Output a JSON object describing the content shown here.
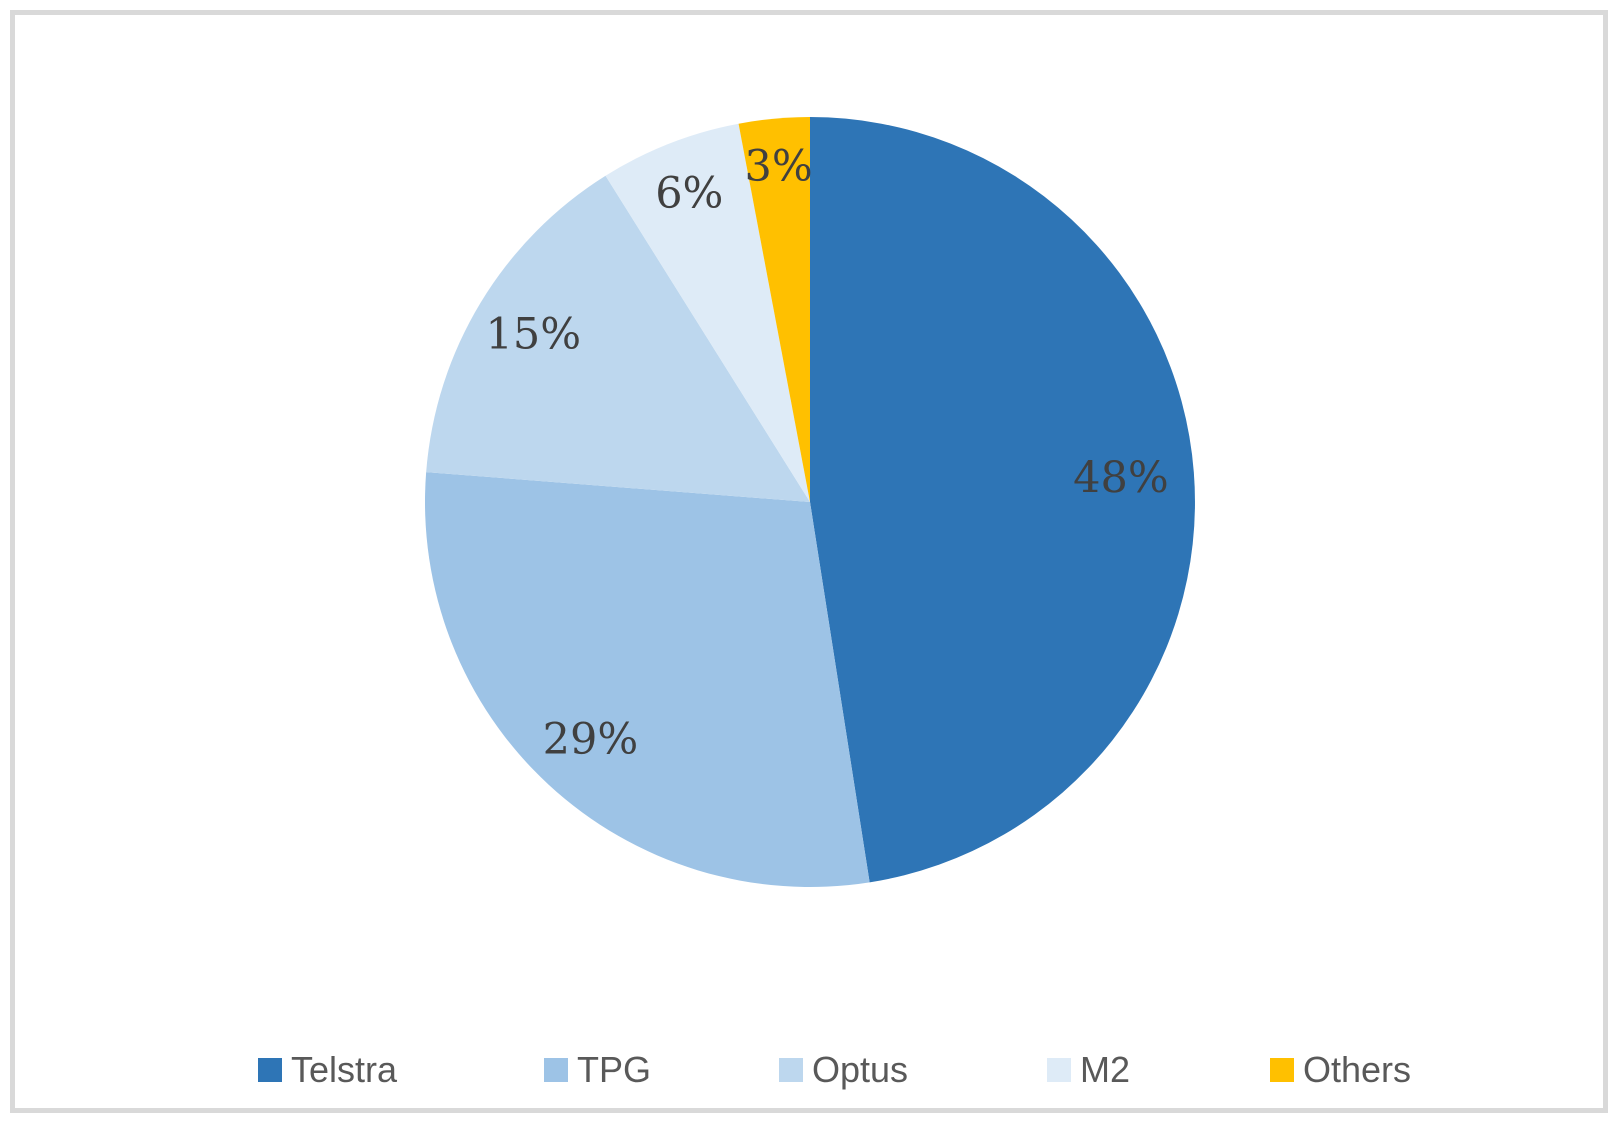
{
  "chart_data": {
    "type": "pie",
    "title": "",
    "categories": [
      "Telstra",
      "TPG",
      "Optus",
      "M2",
      "Others"
    ],
    "values": [
      48,
      29,
      15,
      6,
      3
    ],
    "data_labels": [
      "48%",
      "29%",
      "15%",
      "6%",
      "3%"
    ],
    "colors": [
      "#2E75B6",
      "#9DC3E6",
      "#BDD7EE",
      "#DEEBF7",
      "#FFC000"
    ],
    "start_angle_deg": 0,
    "direction": "clockwise",
    "legend_position": "bottom",
    "label_color": "#404040",
    "legend_text_color": "#595959",
    "frame_border_color": "#D9D9D9",
    "label_radius_fraction": [
      0.81,
      0.84,
      0.84,
      0.86,
      0.875
    ]
  }
}
